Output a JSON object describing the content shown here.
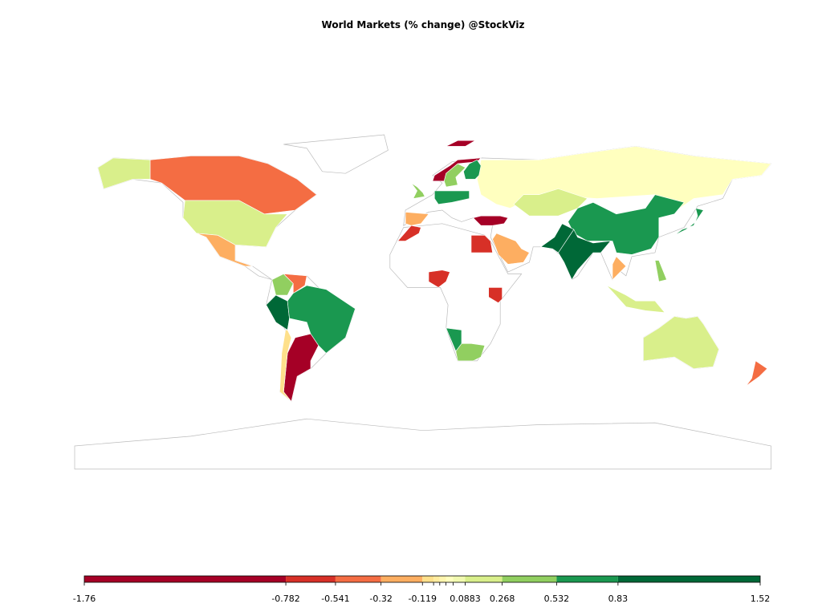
{
  "chart_data": {
    "type": "choropleth",
    "title": "World Markets (% change) @StockViz",
    "values": [
      -0.45,
      0.15,
      -0.2,
      0.7,
      -1.5,
      -0.1,
      1.0,
      0.4,
      -0.4,
      0.01,
      0.15,
      0.6,
      1.2,
      1.2,
      0.6,
      0.15,
      -0.45,
      0.35,
      0.6,
      -0.6,
      -0.6,
      -0.6,
      -1.0,
      -0.2,
      -1.2,
      0.4,
      0.6,
      0.6,
      -0.2,
      0.3,
      -0.3,
      0.2,
      0.4,
      -0.6,
      -1.6
    ],
    "colorbar": {
      "ticks": [
        -1.76,
        -0.782,
        -0.541,
        -0.32,
        -0.119,
        {
          "value": -0.065,
          "label": null
        },
        {
          "value": -0.035,
          "label": null
        },
        {
          "value": -0.005,
          "label": null
        },
        {
          "value": 0.03,
          "label": null
        },
        0.0883,
        0.268,
        0.532,
        0.83,
        1.52
      ],
      "colors": [
        "#a50026",
        "#d73027",
        "#f46d43",
        "#fdae61",
        "#fee08b",
        "#ffec9e",
        "#fff5ae",
        "#ffffbf",
        "#f1f9b0",
        "#d9ef8b",
        "#91cf60",
        "#1a9850",
        "#006837"
      ]
    }
  }
}
